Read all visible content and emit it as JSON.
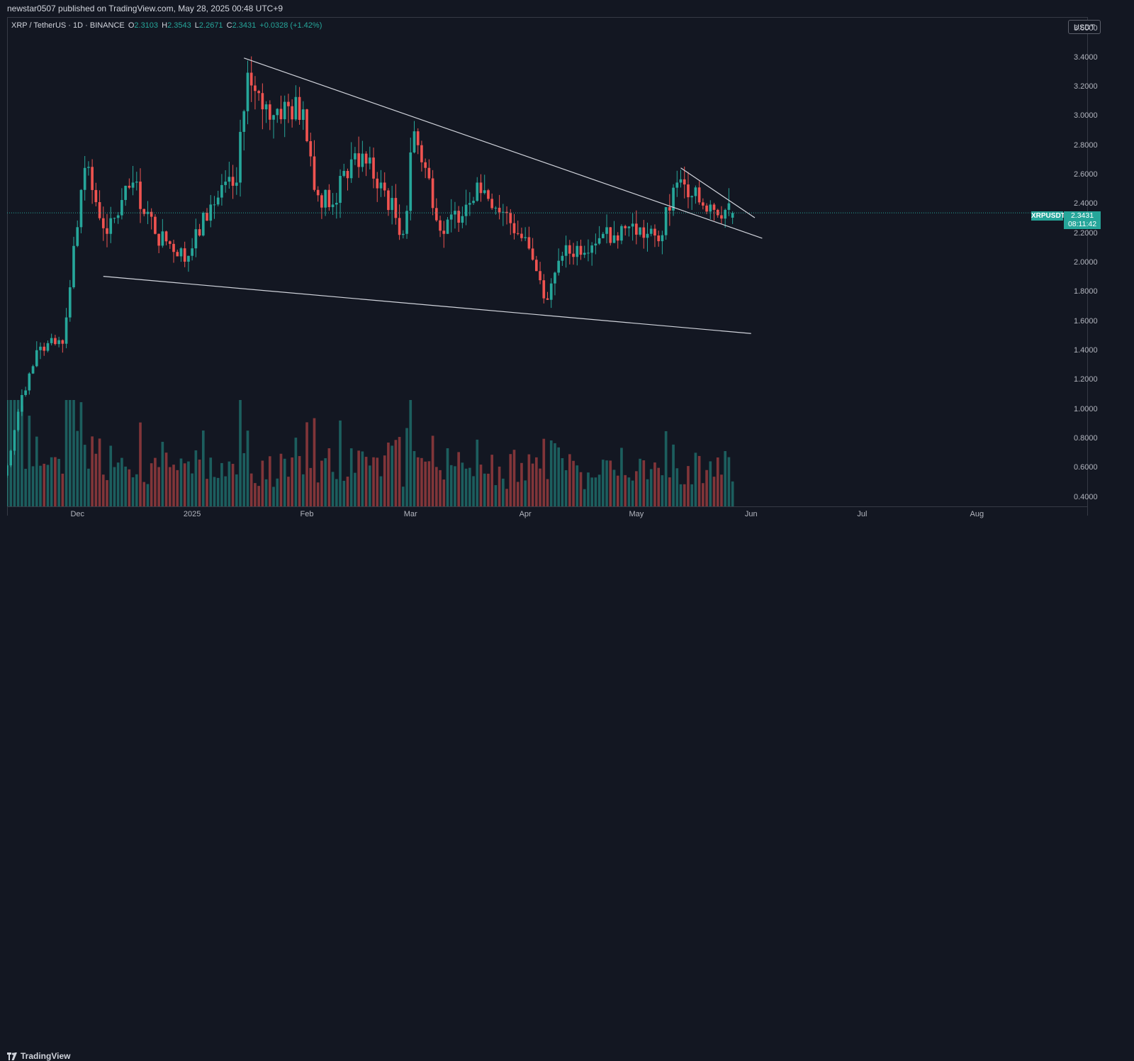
{
  "publisher_line": "newstar0507 published on TradingView.com, May 28, 2025 00:48 UTC+9",
  "legend": {
    "symbol": "XRP / TetherUS · 1D · BINANCE",
    "open_label": "O",
    "open": "2.3103",
    "high_label": "H",
    "high": "2.3543",
    "low_label": "L",
    "low": "2.2671",
    "close_label": "C",
    "close": "2.3431",
    "change": "+0.0328 (+1.42%)"
  },
  "currency_button": "USDT",
  "last_price": {
    "symbol": "XRPUSDT",
    "price": "2.3431",
    "countdown": "08:11:42"
  },
  "footer": {
    "brand": "TradingView",
    "logo_icon": "tradingview-logo-icon"
  },
  "colors": {
    "up": "#26a69a",
    "down": "#ef5350",
    "background": "#131722",
    "trendline": "#d1d4dc"
  },
  "chart_data": {
    "type": "candlestick",
    "symbol": "XRPUSDT",
    "interval": "1D",
    "y_axis": {
      "ticks": [
        "3.6000",
        "3.4000",
        "3.2000",
        "3.0000",
        "2.8000",
        "2.6000",
        "2.4000",
        "2.2000",
        "2.0000",
        "1.8000",
        "1.6000",
        "1.4000",
        "1.2000",
        "1.0000",
        "0.8000",
        "0.6000",
        "0.4000"
      ],
      "ylim": [
        0.34,
        3.68
      ]
    },
    "x_axis": {
      "ticks": [
        "Dec",
        "2025",
        "Feb",
        "Mar",
        "Apr",
        "May",
        "Jun",
        "Jul",
        "Aug"
      ],
      "tick_dates": [
        "2024-12-01",
        "2025-01-01",
        "2025-02-01",
        "2025-03-01",
        "2025-04-01",
        "2025-05-01",
        "2025-06-01",
        "2025-07-01",
        "2025-08-01"
      ],
      "xlim": [
        "2024-11-12",
        "2025-08-31"
      ]
    },
    "candles_key_points": [
      {
        "date": "2024-11-12",
        "close": 0.62
      },
      {
        "date": "2024-11-16",
        "close": 1.1
      },
      {
        "date": "2024-11-21",
        "close": 1.43
      },
      {
        "date": "2024-11-27",
        "close": 1.45
      },
      {
        "date": "2024-12-02",
        "close": 2.5
      },
      {
        "date": "2024-12-03",
        "close": 2.65
      },
      {
        "date": "2024-12-09",
        "close": 2.2
      },
      {
        "date": "2024-12-16",
        "close": 2.55
      },
      {
        "date": "2024-12-22",
        "close": 2.2
      },
      {
        "date": "2024-12-31",
        "close": 2.05
      },
      {
        "date": "2025-01-06",
        "close": 2.4
      },
      {
        "date": "2025-01-13",
        "close": 2.55
      },
      {
        "date": "2025-01-16",
        "close": 3.3
      },
      {
        "date": "2025-01-20",
        "close": 3.05
      },
      {
        "date": "2025-01-31",
        "close": 3.05
      },
      {
        "date": "2025-02-03",
        "close": 2.5
      },
      {
        "date": "2025-02-08",
        "close": 2.4
      },
      {
        "date": "2025-02-14",
        "close": 2.75
      },
      {
        "date": "2025-02-21",
        "close": 2.55
      },
      {
        "date": "2025-02-27",
        "close": 2.2
      },
      {
        "date": "2025-03-02",
        "close": 2.9
      },
      {
        "date": "2025-03-10",
        "close": 2.2
      },
      {
        "date": "2025-03-19",
        "close": 2.55
      },
      {
        "date": "2025-03-26",
        "close": 2.35
      },
      {
        "date": "2025-04-02",
        "close": 2.1
      },
      {
        "date": "2025-04-07",
        "close": 1.75
      },
      {
        "date": "2025-04-11",
        "close": 2.05
      },
      {
        "date": "2025-04-22",
        "close": 2.2
      },
      {
        "date": "2025-04-29",
        "close": 2.25
      },
      {
        "date": "2025-05-07",
        "close": 2.15
      },
      {
        "date": "2025-05-12",
        "close": 2.55
      },
      {
        "date": "2025-05-15",
        "close": 2.45
      },
      {
        "date": "2025-05-21",
        "close": 2.4
      },
      {
        "date": "2025-05-27",
        "close": 2.3431
      }
    ],
    "volume_unit": "relative",
    "trendlines": [
      {
        "name": "upper-resistance",
        "from": {
          "date": "2025-01-15",
          "price": 3.4
        },
        "to": {
          "date": "2025-06-04",
          "price": 2.17
        }
      },
      {
        "name": "lower-support",
        "from": {
          "date": "2024-12-08",
          "price": 1.91
        },
        "to": {
          "date": "2025-06-01",
          "price": 1.52
        }
      },
      {
        "name": "wedge-upper",
        "from": {
          "date": "2025-05-13",
          "price": 2.65
        },
        "to": {
          "date": "2025-06-02",
          "price": 2.31
        }
      }
    ],
    "last_price_line": 2.3431
  }
}
